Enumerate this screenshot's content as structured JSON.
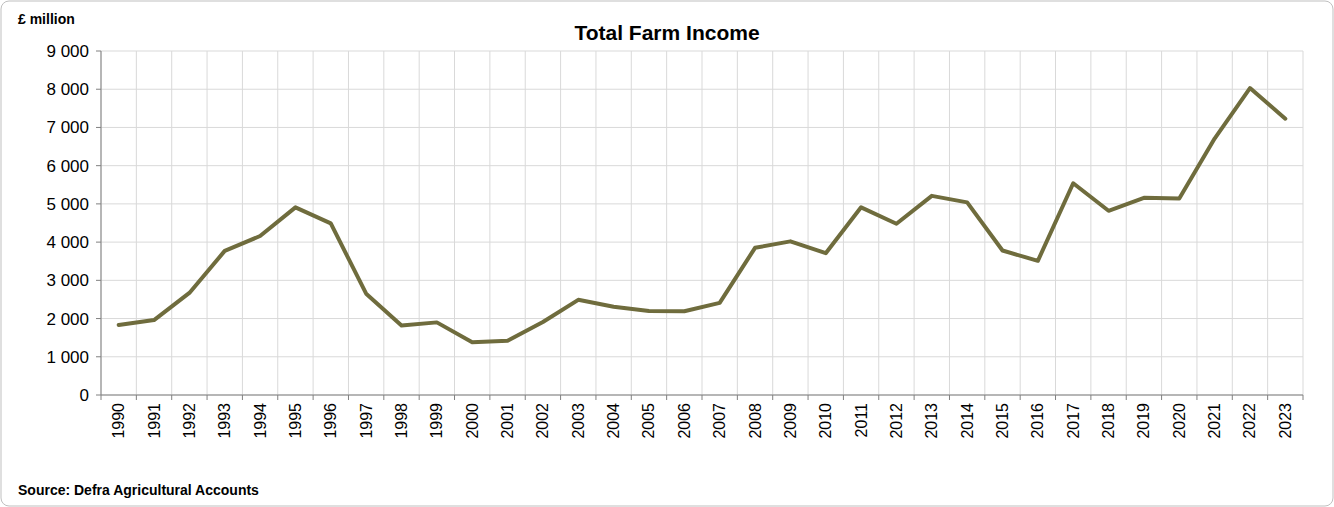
{
  "chart_data": {
    "type": "line",
    "title": "Total Farm Income",
    "y_label": "£ million",
    "source": "Source: Defra Agricultural Accounts",
    "categories": [
      "1990",
      "1991",
      "1992",
      "1993",
      "1994",
      "1995",
      "1996",
      "1997",
      "1998",
      "1999",
      "2000",
      "2001",
      "2002",
      "2003",
      "2004",
      "2005",
      "2006",
      "2007",
      "2008",
      "2009",
      "2010",
      "2011",
      "2012",
      "2013",
      "2014",
      "2015",
      "2016",
      "2017",
      "2018",
      "2019",
      "2020",
      "2021",
      "2022",
      "2023"
    ],
    "values": [
      1830,
      1960,
      2670,
      3770,
      4160,
      4910,
      4490,
      2650,
      1820,
      1900,
      1380,
      1420,
      1910,
      2490,
      2310,
      2200,
      2190,
      2410,
      3850,
      4020,
      3710,
      4910,
      4480,
      5210,
      5040,
      3780,
      3510,
      5540,
      4820,
      5160,
      5140,
      6710,
      8030,
      7230
    ],
    "color": "#6f6c3d",
    "ylim": [
      0,
      9000
    ],
    "yticks": [
      0,
      {
        "value": 1000,
        "label": "1 000"
      },
      {
        "value": 2000,
        "label": "2 000"
      },
      {
        "value": 3000,
        "label": "3 000"
      },
      {
        "value": 4000,
        "label": "4 000"
      },
      {
        "value": 5000,
        "label": "5 000"
      },
      {
        "value": 6000,
        "label": "6 000"
      },
      {
        "value": 7000,
        "label": "7 000"
      },
      {
        "value": 8000,
        "label": "8 000"
      },
      {
        "value": 9000,
        "label": "9 000"
      }
    ],
    "grid": true
  }
}
